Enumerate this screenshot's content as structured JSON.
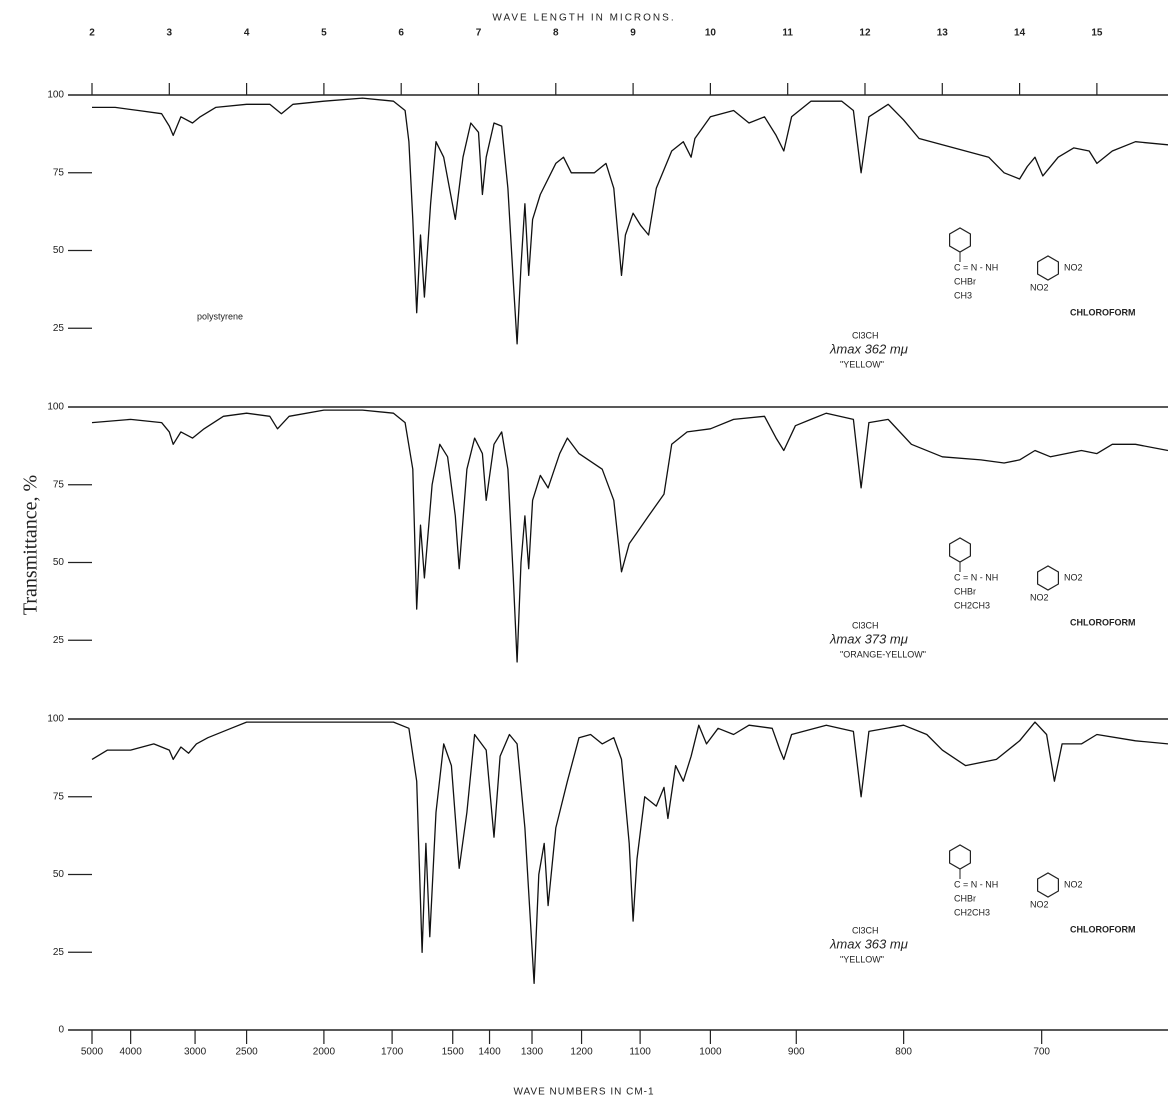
{
  "top_axis_label": "WAVE LENGTH IN MICRONS.",
  "bottom_axis_label": "WAVE NUMBERS IN CM-1",
  "ylabel": "Transmittance, %",
  "xlim": [
    2,
    15.92
  ],
  "xticks": [
    2,
    3,
    4,
    5,
    6,
    7,
    8,
    9,
    10,
    11,
    12,
    13,
    14,
    15
  ],
  "wavenumber_ticks": [
    5000,
    4000,
    3000,
    2500,
    2000,
    1700,
    1500,
    1400,
    1300,
    1200,
    1100,
    1000,
    900,
    800,
    700
  ],
  "chart_data": [
    {
      "type": "line",
      "color": "#111111",
      "ylim": [
        0,
        100
      ],
      "yticks": [
        25,
        50,
        75,
        100
      ],
      "sample_label": "polystyrene",
      "solvent_formula": "Cl3CH",
      "lambda_max": "λmax 362 mμ",
      "color_name": "\"YELLOW\"",
      "solvent": "CHLOROFORM",
      "structure": [
        "C = N - NH",
        "CHBr",
        "CH3",
        "NO2",
        "NO2"
      ],
      "x": [
        2.0,
        2.3,
        2.6,
        2.9,
        3.0,
        3.05,
        3.15,
        3.3,
        3.4,
        3.6,
        4.0,
        4.3,
        4.45,
        4.6,
        5.0,
        5.5,
        5.9,
        6.05,
        6.1,
        6.15,
        6.2,
        6.25,
        6.3,
        6.38,
        6.45,
        6.55,
        6.7,
        6.8,
        6.9,
        7.0,
        7.05,
        7.1,
        7.2,
        7.3,
        7.38,
        7.45,
        7.5,
        7.55,
        7.6,
        7.65,
        7.7,
        7.8,
        8.0,
        8.1,
        8.2,
        8.5,
        8.65,
        8.75,
        8.85,
        8.9,
        9.0,
        9.1,
        9.2,
        9.3,
        9.5,
        9.65,
        9.75,
        9.8,
        10.0,
        10.3,
        10.5,
        10.7,
        10.85,
        10.95,
        11.05,
        11.3,
        11.7,
        11.85,
        11.95,
        12.05,
        12.3,
        12.5,
        12.7,
        13.0,
        13.3,
        13.6,
        13.8,
        14.0,
        14.1,
        14.2,
        14.3,
        14.5,
        14.7,
        14.9,
        15.0,
        15.2,
        15.5,
        15.92
      ],
      "values": [
        96,
        96,
        95,
        94,
        90,
        87,
        93,
        91,
        93,
        96,
        97,
        97,
        94,
        97,
        98,
        99,
        98,
        95,
        85,
        60,
        30,
        55,
        35,
        65,
        85,
        80,
        60,
        80,
        91,
        88,
        68,
        80,
        91,
        90,
        70,
        40,
        20,
        45,
        65,
        42,
        60,
        68,
        78,
        80,
        75,
        75,
        78,
        70,
        42,
        55,
        62,
        58,
        55,
        70,
        82,
        85,
        80,
        86,
        93,
        95,
        91,
        93,
        87,
        82,
        93,
        98,
        98,
        95,
        75,
        93,
        97,
        92,
        86,
        84,
        82,
        80,
        75,
        73,
        77,
        80,
        74,
        80,
        83,
        82,
        78,
        82,
        85,
        84
      ]
    },
    {
      "type": "line",
      "color": "#111111",
      "ylim": [
        0,
        100
      ],
      "yticks": [
        25,
        50,
        75,
        100
      ],
      "solvent_formula": "Cl3CH",
      "lambda_max": "λmax 373 mμ",
      "color_name": "\"ORANGE-YELLOW\"",
      "solvent": "CHLOROFORM",
      "structure": [
        "C = N - NH",
        "CHBr",
        "CH2CH3",
        "NO2",
        "NO2"
      ],
      "x": [
        2.0,
        2.5,
        2.9,
        3.0,
        3.05,
        3.15,
        3.3,
        3.45,
        3.7,
        4.0,
        4.3,
        4.4,
        4.55,
        5.0,
        5.5,
        5.9,
        6.05,
        6.15,
        6.2,
        6.25,
        6.3,
        6.4,
        6.5,
        6.6,
        6.7,
        6.75,
        6.85,
        6.95,
        7.05,
        7.1,
        7.2,
        7.3,
        7.38,
        7.45,
        7.5,
        7.55,
        7.6,
        7.65,
        7.7,
        7.8,
        7.9,
        8.05,
        8.15,
        8.3,
        8.6,
        8.75,
        8.85,
        8.95,
        9.2,
        9.4,
        9.5,
        9.7,
        10.0,
        10.3,
        10.7,
        10.85,
        10.95,
        11.1,
        11.3,
        11.5,
        11.85,
        11.95,
        12.05,
        12.3,
        12.6,
        13.0,
        13.5,
        13.8,
        14.0,
        14.2,
        14.4,
        14.8,
        15.0,
        15.2,
        15.5,
        15.92
      ],
      "values": [
        95,
        96,
        95,
        92,
        88,
        92,
        90,
        93,
        97,
        98,
        97,
        93,
        97,
        99,
        99,
        98,
        95,
        80,
        35,
        62,
        45,
        75,
        88,
        84,
        65,
        48,
        80,
        90,
        85,
        70,
        88,
        92,
        80,
        45,
        18,
        50,
        65,
        48,
        70,
        78,
        74,
        85,
        90,
        85,
        80,
        70,
        47,
        56,
        65,
        72,
        88,
        92,
        93,
        96,
        97,
        90,
        86,
        94,
        96,
        98,
        96,
        74,
        95,
        96,
        88,
        84,
        83,
        82,
        83,
        86,
        84,
        86,
        85,
        88,
        88,
        86
      ]
    },
    {
      "type": "line",
      "color": "#111111",
      "ylim": [
        0,
        100
      ],
      "yticks": [
        0,
        25,
        50,
        75,
        100
      ],
      "solvent_formula": "Cl3CH",
      "lambda_max": "λmax 363 mμ",
      "color_name": "\"YELLOW\"",
      "solvent": "CHLOROFORM",
      "structure": [
        "C = N - NH",
        "CHBr",
        "CH2CH3",
        "NO2",
        "NO2"
      ],
      "x": [
        2.0,
        2.2,
        2.5,
        2.8,
        3.0,
        3.05,
        3.15,
        3.25,
        3.35,
        3.5,
        3.8,
        4.0,
        5.0,
        5.9,
        6.1,
        6.2,
        6.27,
        6.32,
        6.37,
        6.45,
        6.55,
        6.65,
        6.75,
        6.85,
        6.95,
        7.1,
        7.2,
        7.28,
        7.4,
        7.5,
        7.6,
        7.72,
        7.78,
        7.85,
        7.9,
        8.0,
        8.15,
        8.3,
        8.45,
        8.6,
        8.75,
        8.85,
        8.95,
        9.0,
        9.05,
        9.15,
        9.3,
        9.4,
        9.45,
        9.55,
        9.65,
        9.75,
        9.85,
        9.95,
        10.1,
        10.3,
        10.5,
        10.8,
        10.9,
        10.95,
        11.05,
        11.5,
        11.85,
        11.95,
        12.05,
        12.5,
        12.8,
        13.0,
        13.3,
        13.7,
        14.0,
        14.2,
        14.35,
        14.45,
        14.55,
        14.8,
        15.0,
        15.5,
        15.92
      ],
      "values": [
        87,
        90,
        90,
        92,
        90,
        87,
        91,
        89,
        92,
        94,
        97,
        99,
        99,
        99,
        97,
        80,
        25,
        60,
        30,
        70,
        92,
        85,
        52,
        70,
        95,
        90,
        62,
        88,
        95,
        92,
        65,
        15,
        50,
        60,
        40,
        65,
        80,
        94,
        95,
        92,
        94,
        87,
        60,
        35,
        55,
        75,
        72,
        78,
        68,
        85,
        80,
        88,
        98,
        92,
        97,
        95,
        98,
        97,
        90,
        87,
        95,
        98,
        96,
        75,
        96,
        98,
        95,
        90,
        85,
        87,
        93,
        99,
        95,
        80,
        92,
        92,
        95,
        93,
        92
      ]
    }
  ]
}
